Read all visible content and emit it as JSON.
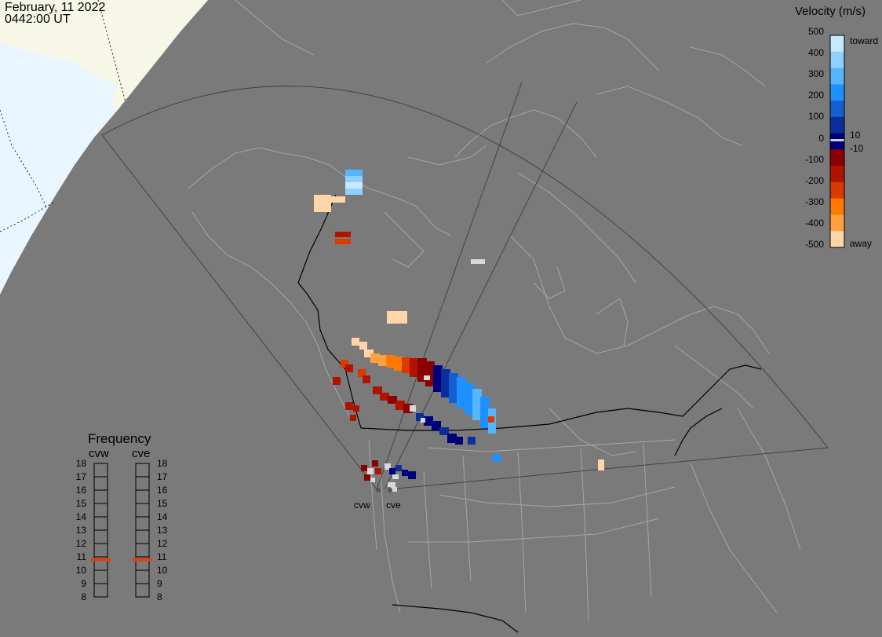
{
  "header": {
    "date": "February, 11 2022",
    "time": "0442:00 UT"
  },
  "velocity_legend": {
    "title": "Velocity (m/s)",
    "ticks": [
      "500",
      "400",
      "300",
      "200",
      "100",
      "0",
      "-100",
      "-200",
      "-300",
      "-400",
      "-500"
    ],
    "pos_annotation": "10",
    "neg_annotation": "-10",
    "toward_label": "toward",
    "away_label": "away",
    "colors": [
      "#c8e8ff",
      "#8fd0ff",
      "#55b6ff",
      "#1e90ff",
      "#1460d0",
      "#0a2e9a",
      "#00007a",
      "#8b0000",
      "#b01400",
      "#d93a00",
      "#ff7a00",
      "#ffa040",
      "#ffd4a8"
    ]
  },
  "frequency_panel": {
    "title": "Frequency",
    "radars": [
      {
        "name": "cvw",
        "frequency_mhz": 10.8
      },
      {
        "name": "cve",
        "frequency_mhz": 10.8
      }
    ],
    "scale": [
      "18",
      "17",
      "16",
      "15",
      "14",
      "13",
      "12",
      "11",
      "10",
      "9",
      "8"
    ],
    "marker_color": "#e04010"
  },
  "radar_sites": [
    {
      "label": "cvw"
    },
    {
      "label": "cve"
    }
  ],
  "colors": {
    "background": "#7a7a7a",
    "daylight": "#f7f7e8",
    "ice": "#e9f6ff",
    "border": "#000000",
    "coast": "#a6a6a6"
  }
}
